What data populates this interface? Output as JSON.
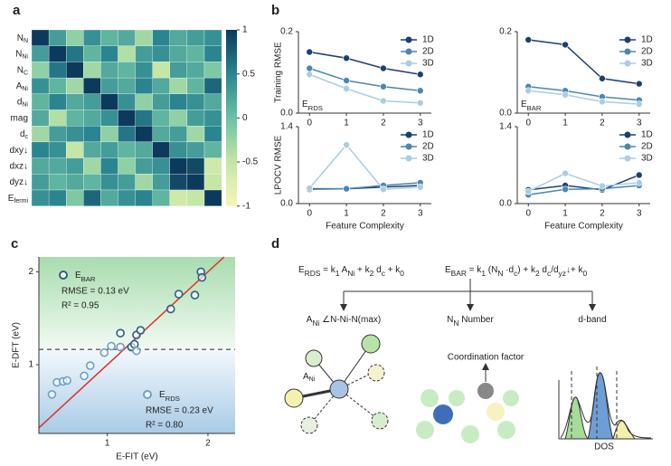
{
  "chart_data": [
    {
      "type": "heatmap",
      "panel_label": "a",
      "labels": [
        [
          {
            "t": "N"
          },
          {
            "t": "N",
            "sub": true
          }
        ],
        [
          {
            "t": "N"
          },
          {
            "t": "Ni",
            "sub": true
          }
        ],
        [
          {
            "t": "N"
          },
          {
            "t": "C",
            "sub": true
          }
        ],
        [
          {
            "t": "A"
          },
          {
            "t": "Ni",
            "sub": true
          }
        ],
        [
          {
            "t": "d"
          },
          {
            "t": "Ni",
            "sub": true
          }
        ],
        [
          {
            "t": "mag"
          }
        ],
        [
          {
            "t": "d"
          },
          {
            "t": "c",
            "sub": true
          }
        ],
        [
          {
            "t": "dxy↓"
          }
        ],
        [
          {
            "t": "dxz↓"
          }
        ],
        [
          {
            "t": "dyz↓"
          }
        ],
        [
          {
            "t": "E"
          },
          {
            "t": "fermi",
            "sub": true
          }
        ]
      ],
      "values": [
        [
          1,
          0.3,
          -0.2,
          0.4,
          0.1,
          0.2,
          -0.3,
          0.5,
          0.2,
          0.3,
          0.4
        ],
        [
          0.3,
          1,
          0.6,
          0.1,
          0.5,
          -0.4,
          0.3,
          0.4,
          0.2,
          0.1,
          0.5
        ],
        [
          -0.2,
          0.6,
          1,
          -0.3,
          0.2,
          0.1,
          0.4,
          -0.5,
          0.3,
          0.2,
          -0.1
        ],
        [
          0.4,
          0.1,
          -0.3,
          1,
          0.3,
          0.2,
          0.5,
          0.2,
          -0.3,
          0.1,
          0.7
        ],
        [
          0.1,
          0.5,
          0.2,
          0.3,
          1,
          0.4,
          -0.2,
          0.3,
          0.5,
          0.4,
          0.2
        ],
        [
          0.2,
          -0.4,
          0.1,
          0.2,
          0.4,
          1,
          0.6,
          0.1,
          -0.2,
          0.3,
          0.4
        ],
        [
          -0.3,
          0.3,
          0.4,
          0.5,
          -0.2,
          0.6,
          1,
          0.2,
          0.3,
          -0.3,
          0.5
        ],
        [
          0.5,
          0.4,
          -0.5,
          0.2,
          0.3,
          0.1,
          0.2,
          1,
          0.4,
          0.3,
          0.1
        ],
        [
          0.2,
          0.2,
          0.3,
          -0.3,
          0.5,
          -0.2,
          0.3,
          0.4,
          1,
          0.9,
          -0.6
        ],
        [
          0.3,
          0.1,
          0.2,
          0.1,
          0.4,
          0.3,
          -0.3,
          0.3,
          0.9,
          1,
          -0.5
        ],
        [
          0.4,
          0.5,
          -0.1,
          0.7,
          0.2,
          0.4,
          0.5,
          0.1,
          -0.6,
          -0.5,
          1
        ]
      ],
      "colorbar_lim": [
        -1,
        1
      ],
      "colorbar_ticks": [
        1,
        0.5,
        0,
        -0.5,
        -1
      ],
      "colors": [
        "#f7f6b4",
        "#c4e6a6",
        "#6cc1a4",
        "#2a8590",
        "#0c3a5c"
      ]
    },
    {
      "type": "line",
      "panel_label": "b",
      "ylabel": "Training RMSE",
      "annotation": [
        {
          "t": "E"
        },
        {
          "t": "RDS",
          "sub": true
        }
      ],
      "x": [
        0,
        1,
        2,
        3
      ],
      "xlim": [
        -0.3,
        3.3
      ],
      "xticks": [
        0,
        1,
        2,
        3
      ],
      "ylim": [
        0,
        0.2
      ],
      "yticks": [
        {
          "value": 0,
          "label": "0.0"
        },
        0.2
      ],
      "legend": "upper right",
      "series": [
        {
          "name": "1D",
          "color": "#1c3f73",
          "values": [
            0.15,
            0.135,
            0.11,
            0.095
          ]
        },
        {
          "name": "2D",
          "color": "#4a86b3",
          "values": [
            0.11,
            0.08,
            0.065,
            0.055
          ]
        },
        {
          "name": "3D",
          "color": "#a9cde3",
          "values": [
            0.095,
            0.06,
            0.03,
            0.025
          ]
        }
      ]
    },
    {
      "type": "line",
      "annotation": [
        {
          "t": "E"
        },
        {
          "t": "BAR",
          "sub": true
        }
      ],
      "x": [
        0,
        1,
        2,
        3
      ],
      "xlim": [
        -0.3,
        3.3
      ],
      "xticks": [
        0,
        1,
        2,
        3
      ],
      "ylim": [
        0,
        0.2
      ],
      "yticks": [
        {
          "value": 0,
          "label": "0.0"
        },
        0.2
      ],
      "legend": "upper right",
      "series": [
        {
          "name": "1D",
          "color": "#1c3f73",
          "values": [
            0.18,
            0.168,
            0.085,
            0.072
          ]
        },
        {
          "name": "2D",
          "color": "#4a86b3",
          "values": [
            0.065,
            0.055,
            0.04,
            0.032
          ]
        },
        {
          "name": "3D",
          "color": "#a9cde3",
          "values": [
            0.055,
            0.045,
            0.028,
            0.022
          ]
        }
      ]
    },
    {
      "type": "line",
      "ylabel": "LPOCV RMSE",
      "xlabel": "Feature Complexity",
      "x": [
        0,
        1,
        2,
        3
      ],
      "xlim": [
        -0.3,
        3.3
      ],
      "xticks": [
        0,
        1,
        2,
        3
      ],
      "ylim": [
        0,
        1.4
      ],
      "yticks": [
        {
          "value": 0,
          "label": "0.0"
        },
        1.4
      ],
      "legend": "upper right",
      "series": [
        {
          "name": "1D",
          "color": "#1c3f73",
          "values": [
            0.27,
            0.27,
            0.3,
            0.33
          ]
        },
        {
          "name": "2D",
          "color": "#4a86b3",
          "values": [
            0.26,
            0.27,
            0.33,
            0.38
          ]
        },
        {
          "name": "3D",
          "color": "#a9cde3",
          "values": [
            0.28,
            1.07,
            0.26,
            0.3
          ]
        }
      ]
    },
    {
      "type": "line",
      "xlabel": "Feature Complexity",
      "x": [
        0,
        1,
        2,
        3
      ],
      "xlim": [
        -0.3,
        3.3
      ],
      "xticks": [
        0,
        1,
        2,
        3
      ],
      "ylim": [
        0,
        1.4
      ],
      "yticks": [
        {
          "value": 0,
          "label": "0.0"
        },
        1.4
      ],
      "legend": "upper right",
      "series": [
        {
          "name": "1D",
          "color": "#1c3f73",
          "values": [
            0.25,
            0.33,
            0.25,
            0.52
          ]
        },
        {
          "name": "2D",
          "color": "#4a86b3",
          "values": [
            0.16,
            0.26,
            0.27,
            0.33
          ]
        },
        {
          "name": "3D",
          "color": "#a9cde3",
          "values": [
            0.22,
            0.55,
            0.32,
            0.38
          ]
        }
      ]
    },
    {
      "type": "scatter",
      "panel_label": "c",
      "xlabel": "E-FIT (eV)",
      "ylabel": "E-DFT (eV)",
      "xlim": [
        0.32,
        2.27
      ],
      "xticks": [
        1,
        2
      ],
      "ylim": [
        0.26,
        2.16
      ],
      "yticks": [
        1,
        2
      ],
      "parity_line": true,
      "parity_color": "#e0302a",
      "hline": 1.165,
      "series": [
        {
          "name": [
            {
              "t": "E"
            },
            {
              "t": "BAR",
              "sub": true
            }
          ],
          "rmse": "RMSE = 0.13 eV",
          "r2": "R² = 0.95",
          "color": "#2c5f8a",
          "x": [
            1.13,
            1.24,
            1.27,
            1.29,
            1.33,
            1.63,
            1.71,
            1.87,
            1.93,
            1.94
          ],
          "values": [
            1.34,
            1.19,
            1.22,
            1.32,
            1.37,
            1.6,
            1.76,
            1.75,
            2.0,
            1.94
          ]
        },
        {
          "name": [
            {
              "t": "E"
            },
            {
              "t": "RDS",
              "sub": true
            }
          ],
          "rmse": "RMSE = 0.23 eV",
          "r2": "R² = 0.80",
          "color": "#6f9fc4",
          "x": [
            0.45,
            0.5,
            0.56,
            0.6,
            0.77,
            0.83,
            0.97,
            1.04,
            1.13,
            1.29
          ],
          "values": [
            0.68,
            0.81,
            0.82,
            0.83,
            0.88,
            0.99,
            1.13,
            1.2,
            1.19,
            1.15
          ]
        }
      ]
    }
  ],
  "diagram": {
    "panel_label": "d",
    "formulas": [
      [
        {
          "t": "E"
        },
        {
          "t": "RDS",
          "sub": true
        },
        {
          "t": " = k"
        },
        {
          "t": "1",
          "sub": true
        },
        {
          "t": " A"
        },
        {
          "t": "Ni",
          "sub": true
        },
        {
          "t": " + k"
        },
        {
          "t": "2",
          "sub": true
        },
        {
          "t": " d"
        },
        {
          "t": "c",
          "sub": true
        },
        {
          "t": " + k"
        },
        {
          "t": "0",
          "sub": true
        }
      ],
      [
        {
          "t": "E"
        },
        {
          "t": "BAR",
          "sub": true
        },
        {
          "t": " = k"
        },
        {
          "t": "1",
          "sub": true
        },
        {
          "t": " (N"
        },
        {
          "t": "N",
          "sub": true
        },
        {
          "t": " ·d"
        },
        {
          "t": "c",
          "sub": true
        },
        {
          "t": ") + k"
        },
        {
          "t": "2",
          "sub": true
        },
        {
          "t": " d"
        },
        {
          "t": "c",
          "sub": true
        },
        {
          "t": "/d"
        },
        {
          "t": "yz",
          "sub": true
        },
        {
          "t": "↓+ k"
        },
        {
          "t": "0",
          "sub": true
        }
      ]
    ],
    "branches": [
      [
        {
          "t": "A"
        },
        {
          "t": "Ni",
          "sub": true
        },
        {
          "t": " ∠N-Ni-N(max)"
        }
      ],
      [
        {
          "t": "N"
        },
        {
          "t": "N",
          "sub": true
        },
        {
          "t": " Number"
        }
      ],
      [
        {
          "t": "d-band"
        }
      ]
    ],
    "atom_label": [
      {
        "t": "A"
      },
      {
        "t": "Ni",
        "sub": true
      }
    ],
    "coordination": "Coordination factor",
    "dos": "DOS"
  }
}
